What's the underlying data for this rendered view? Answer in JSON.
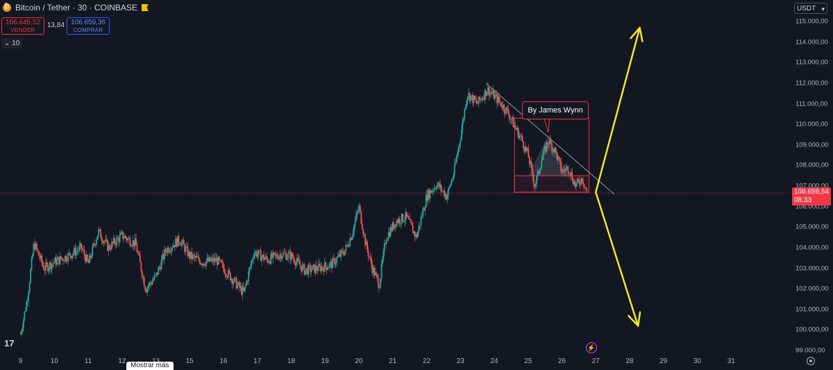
{
  "header": {
    "symbol_title": "Bitcoin / Tether · 30 · COINBASE",
    "sell_price": "106.645,52",
    "sell_label": "VENDER",
    "spread": "13,84",
    "buy_price": "106.659,36",
    "buy_label": "COMPRAR",
    "interval_toggle": "10"
  },
  "currency_select": "USDT",
  "current_price": {
    "value": "106.659,54",
    "countdown": "08:33"
  },
  "price_axis_labels": [
    "115.000,00",
    "114.000,00",
    "113.000,00",
    "112.000,00",
    "111.000,00",
    "110.000,00",
    "109.000,00",
    "108.000,00",
    "107.000,00",
    "106.000,00",
    "105.000,00",
    "104.000,00",
    "103.000,00",
    "102.000,00",
    "101.000,00",
    "100.000,00",
    "99.000,00"
  ],
  "time_axis_labels": [
    "9",
    "10",
    "11",
    "12",
    "13",
    "15",
    "16",
    "17",
    "18",
    "19",
    "20",
    "21",
    "22",
    "23",
    "24",
    "25",
    "26",
    "27",
    "28",
    "29",
    "30",
    "31"
  ],
  "annotation": "By James Wynn",
  "bottom_tab": "Mostrar más",
  "colors": {
    "up": "#26a69a",
    "down": "#ef5350",
    "projection": "#f5e72a",
    "current_line": "#f23645",
    "background": "#131722"
  },
  "chart_data": {
    "type": "candlestick",
    "title": "Bitcoin / Tether · 30 · COINBASE",
    "ylim": [
      99000,
      115300
    ],
    "x_start_day": 9,
    "close_path_anchors": [
      [
        9.0,
        99800
      ],
      [
        9.2,
        101500
      ],
      [
        9.4,
        104200
      ],
      [
        9.7,
        103000
      ],
      [
        10.0,
        103300
      ],
      [
        10.4,
        103600
      ],
      [
        10.8,
        104000
      ],
      [
        11.0,
        103200
      ],
      [
        11.3,
        104800
      ],
      [
        11.6,
        104000
      ],
      [
        12.0,
        104600
      ],
      [
        12.4,
        104200
      ],
      [
        12.7,
        102000
      ],
      [
        13.0,
        102600
      ],
      [
        13.3,
        103900
      ],
      [
        13.7,
        104400
      ],
      [
        14.0,
        103600
      ],
      [
        14.4,
        103300
      ],
      [
        14.8,
        103400
      ],
      [
        15.2,
        102600
      ],
      [
        15.6,
        101800
      ],
      [
        15.9,
        103800
      ],
      [
        16.3,
        103400
      ],
      [
        16.7,
        103700
      ],
      [
        17.0,
        103600
      ],
      [
        17.4,
        102900
      ],
      [
        17.8,
        103000
      ],
      [
        18.2,
        103200
      ],
      [
        18.6,
        103900
      ],
      [
        18.8,
        104700
      ],
      [
        19.0,
        106000
      ],
      [
        19.2,
        104200
      ],
      [
        19.4,
        103000
      ],
      [
        19.6,
        102200
      ],
      [
        19.8,
        104500
      ],
      [
        20.1,
        105300
      ],
      [
        20.4,
        105500
      ],
      [
        20.7,
        104500
      ],
      [
        21.0,
        106500
      ],
      [
        21.3,
        107100
      ],
      [
        21.6,
        106500
      ],
      [
        21.8,
        107600
      ],
      [
        22.0,
        109400
      ],
      [
        22.2,
        111500
      ],
      [
        22.5,
        111000
      ],
      [
        22.8,
        111700
      ],
      [
        23.1,
        111200
      ],
      [
        23.4,
        110600
      ],
      [
        23.6,
        109900
      ],
      [
        23.8,
        109300
      ],
      [
        24.0,
        108500
      ],
      [
        24.2,
        107000
      ],
      [
        24.4,
        108300
      ],
      [
        24.6,
        109200
      ],
      [
        24.8,
        108700
      ],
      [
        25.0,
        107700
      ],
      [
        25.2,
        107900
      ],
      [
        25.4,
        107000
      ],
      [
        25.6,
        107400
      ],
      [
        25.75,
        106660
      ]
    ],
    "current_price": 106659.54,
    "drawings": {
      "trendline": [
        [
          22.75,
          112000
        ],
        [
          26.55,
          106600
        ]
      ],
      "box_upper": {
        "x": [
          23.6,
          25.8
        ],
        "y": [
          106700,
          110300
        ]
      },
      "box_lower": {
        "x": [
          23.6,
          25.8
        ],
        "y": [
          106700,
          107500
        ]
      },
      "projection_up": [
        [
          26.0,
          106700
        ],
        [
          27.3,
          114700
        ]
      ],
      "projection_down": [
        [
          26.0,
          106700
        ],
        [
          27.25,
          100200
        ]
      ]
    }
  }
}
